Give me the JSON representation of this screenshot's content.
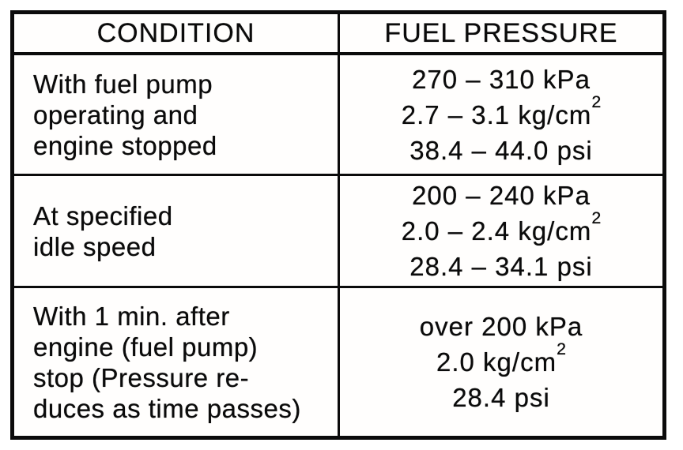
{
  "table": {
    "title": "fuel-pressure-specification",
    "headers": {
      "condition": "CONDITION",
      "pressure": "FUEL PRESSURE"
    },
    "rows": [
      {
        "condition": [
          "With fuel pump",
          "operating and",
          "engine stopped"
        ],
        "pressure": {
          "kpa": "270 – 310 kPa",
          "kgcm": {
            "text": "2.7 – 3.1 kg/cm",
            "sup": "2"
          },
          "psi": "38.4 – 44.0 psi"
        }
      },
      {
        "condition": [
          "At specified",
          "idle speed"
        ],
        "pressure": {
          "kpa": "200 – 240 kPa",
          "kgcm": {
            "text": "2.0 – 2.4 kg/cm",
            "sup": "2"
          },
          "psi": "28.4 – 34.1 psi"
        }
      },
      {
        "condition": [
          "With 1 min. after",
          "engine (fuel pump)",
          "stop (Pressure re-",
          "duces as time passes)"
        ],
        "pressure": {
          "kpa": "over 200 kPa",
          "kgcm": {
            "text": "2.0 kg/cm",
            "sup": "2"
          },
          "psi": "28.4 psi"
        }
      }
    ],
    "colors": {
      "ink": "#0b0b0b",
      "paper": "#ffffff"
    }
  }
}
